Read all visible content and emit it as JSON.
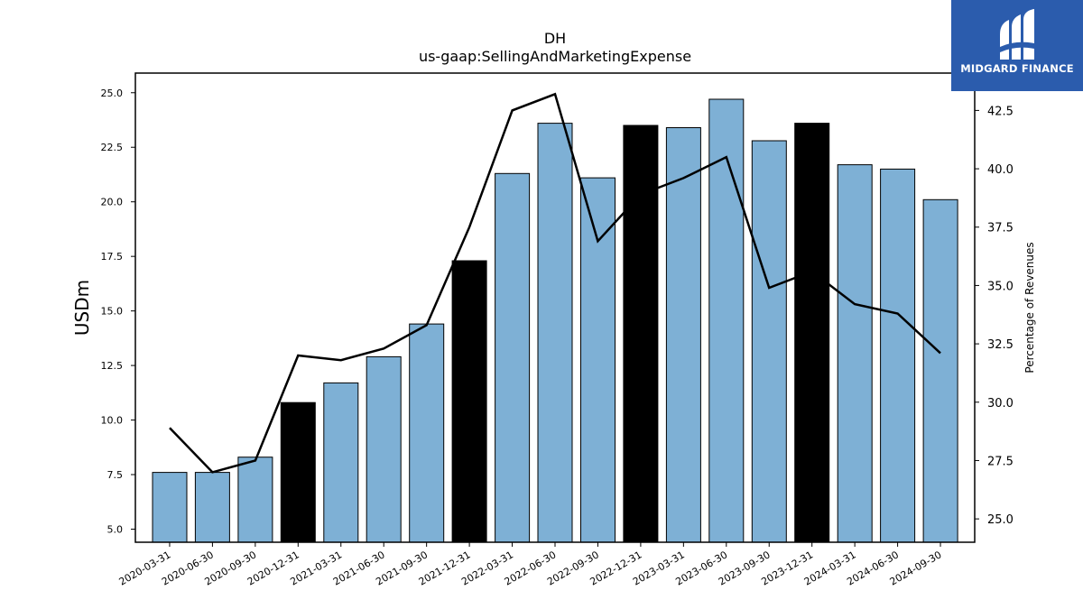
{
  "logo": {
    "text": "MIDGARD FINANCE",
    "icon": "midgard-finance-logo-icon",
    "background": "#2b5cad"
  },
  "chart_data": {
    "type": "bar",
    "title": "DH",
    "subtitle": "us-gaap:SellingAndMarketingExpense",
    "ylabel": "USDm",
    "y2label": "Percentage of Revenues",
    "ylim": [
      4.4,
      25.9
    ],
    "y2lim": [
      24.0,
      44.1
    ],
    "yticks": [
      "5.0",
      "7.5",
      "10.0",
      "12.5",
      "15.0",
      "17.5",
      "20.0",
      "22.5",
      "25.0"
    ],
    "y2ticks": [
      "25.0",
      "27.5",
      "30.0",
      "32.5",
      "35.0",
      "37.5",
      "40.0",
      "42.5"
    ],
    "categories": [
      "2020-03-31",
      "2020-06-30",
      "2020-09-30",
      "2020-12-31",
      "2021-03-31",
      "2021-06-30",
      "2021-09-30",
      "2021-12-31",
      "2022-03-31",
      "2022-06-30",
      "2022-09-30",
      "2022-12-31",
      "2023-03-31",
      "2023-06-30",
      "2023-09-30",
      "2023-12-31",
      "2024-03-31",
      "2024-06-30",
      "2024-09-30"
    ],
    "series": [
      {
        "kind": "bar",
        "values": [
          7.6,
          7.6,
          8.3,
          10.8,
          11.7,
          12.9,
          14.4,
          17.3,
          21.3,
          23.6,
          21.1,
          23.5,
          23.4,
          24.7,
          22.8,
          23.6,
          21.7,
          21.5,
          20.1
        ],
        "highlight": [
          false,
          false,
          false,
          true,
          false,
          false,
          false,
          true,
          false,
          false,
          false,
          true,
          false,
          false,
          false,
          true,
          false,
          false,
          false
        ],
        "color": "#7eb0d5",
        "highlight_color": "#000000"
      },
      {
        "kind": "line",
        "axis": "right",
        "values": [
          28.9,
          27.0,
          27.5,
          32.0,
          31.8,
          32.3,
          33.3,
          37.5,
          42.5,
          43.2,
          36.9,
          38.9,
          39.6,
          40.5,
          34.9,
          35.6,
          34.2,
          33.8,
          32.1
        ],
        "color": "#000000"
      }
    ],
    "grid": false,
    "legend": "none"
  }
}
